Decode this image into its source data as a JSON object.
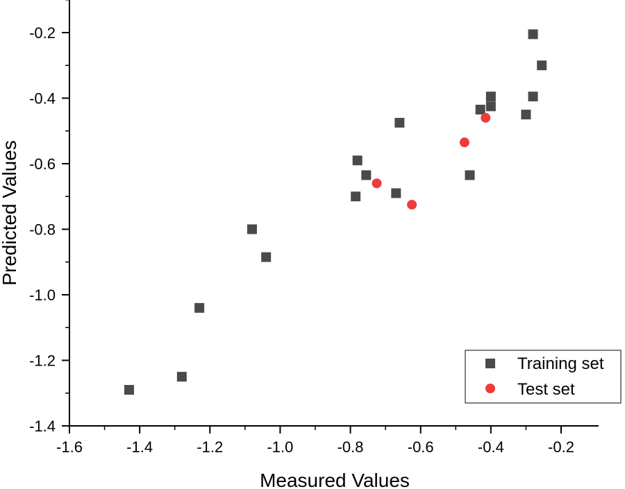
{
  "chart_data": {
    "type": "scatter",
    "title": "",
    "xlabel": "Measured Values",
    "ylabel": "Predicted Values",
    "xlim": [
      -1.6,
      -0.1
    ],
    "ylim": [
      -1.4,
      -0.1
    ],
    "x_major_ticks": [
      -1.6,
      -1.4,
      -1.2,
      -1.0,
      -0.8,
      -0.6,
      -0.4,
      -0.2
    ],
    "x_tick_labels": [
      "-1.6",
      "-1.4",
      "-1.2",
      "-1.0",
      "-0.8",
      "-0.6",
      "-0.4",
      "-0.2"
    ],
    "y_major_ticks": [
      -1.4,
      -1.2,
      -1.0,
      -0.8,
      -0.6,
      -0.4,
      -0.2
    ],
    "y_tick_labels": [
      "-1.4",
      "-1.2",
      "-1.0",
      "-0.8",
      "-0.6",
      "-0.4",
      "-0.2"
    ],
    "grid": false,
    "legend_position": "bottom-right",
    "series": [
      {
        "name": "Training set",
        "marker": "square",
        "color": "#4a4a4a",
        "points": [
          [
            -1.43,
            -1.29
          ],
          [
            -1.28,
            -1.25
          ],
          [
            -1.23,
            -1.04
          ],
          [
            -1.08,
            -0.8
          ],
          [
            -1.04,
            -0.885
          ],
          [
            -0.785,
            -0.7
          ],
          [
            -0.78,
            -0.59
          ],
          [
            -0.755,
            -0.635
          ],
          [
            -0.67,
            -0.69
          ],
          [
            -0.66,
            -0.475
          ],
          [
            -0.46,
            -0.635
          ],
          [
            -0.43,
            -0.435
          ],
          [
            -0.4,
            -0.395
          ],
          [
            -0.4,
            -0.425
          ],
          [
            -0.3,
            -0.45
          ],
          [
            -0.28,
            -0.205
          ],
          [
            -0.28,
            -0.395
          ],
          [
            -0.255,
            -0.3
          ]
        ]
      },
      {
        "name": "Test set",
        "marker": "circle",
        "color": "#ee3b3b",
        "points": [
          [
            -0.725,
            -0.66
          ],
          [
            -0.625,
            -0.725
          ],
          [
            -0.475,
            -0.535
          ],
          [
            -0.415,
            -0.46
          ]
        ]
      }
    ]
  }
}
